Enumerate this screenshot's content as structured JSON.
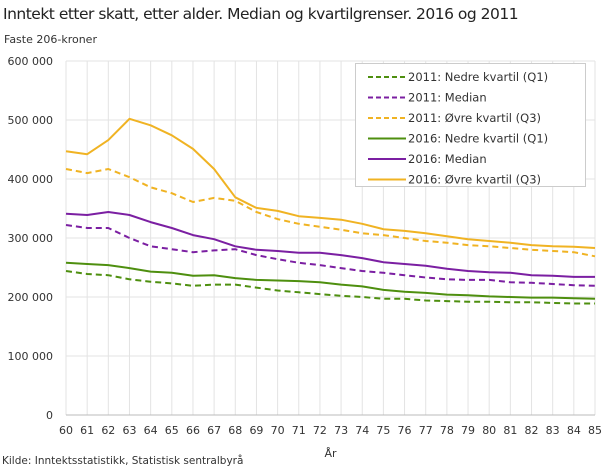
{
  "title": "Inntekt etter skatt, etter alder. Median og kvartilgrenser. 2016 og 2011",
  "source": "Kilde: Inntektsstatistikk, Statistisk sentralbyrå",
  "chart_data": {
    "type": "line",
    "title": "Inntekt etter skatt, etter alder. Median og kvartilgrenser. 2016 og 2011",
    "ylabel": "Faste 206-kroner",
    "xlabel": "År",
    "ylim": [
      0,
      600000
    ],
    "yticks": [
      0,
      100000,
      200000,
      300000,
      400000,
      500000,
      600000
    ],
    "ytick_labels": [
      "0",
      "100 000",
      "200 000",
      "300 000",
      "400 000",
      "500 000",
      "600 000"
    ],
    "grid": true,
    "legend_position": "top-right",
    "x": [
      60,
      61,
      62,
      63,
      64,
      65,
      66,
      67,
      68,
      69,
      70,
      71,
      72,
      73,
      74,
      75,
      76,
      77,
      78,
      79,
      80,
      81,
      82,
      83,
      84,
      85
    ],
    "series": [
      {
        "name": "2011: Nedre kvartil (Q1)",
        "color": "#4e8f0f",
        "dashed": true,
        "values": [
          244000,
          239000,
          237000,
          230000,
          226000,
          223000,
          219000,
          221000,
          221000,
          216000,
          211000,
          208000,
          205000,
          202000,
          200000,
          197000,
          197000,
          194000,
          193000,
          192000,
          192000,
          191000,
          191000,
          190000,
          189000,
          189000
        ]
      },
      {
        "name": "2011: Median",
        "color": "#7b1fa2",
        "dashed": true,
        "values": [
          322000,
          317000,
          317000,
          300000,
          286000,
          281000,
          276000,
          279000,
          281000,
          271000,
          264000,
          258000,
          254000,
          249000,
          244000,
          241000,
          237000,
          233000,
          230000,
          229000,
          229000,
          225000,
          224000,
          222000,
          220000,
          219000
        ]
      },
      {
        "name": "2011: Øvre kvartil (Q3)",
        "color": "#f0b323",
        "dashed": true,
        "values": [
          417000,
          410000,
          417000,
          403000,
          386000,
          376000,
          361000,
          368000,
          363000,
          344000,
          332000,
          324000,
          319000,
          314000,
          308000,
          305000,
          300000,
          295000,
          292000,
          288000,
          286000,
          283000,
          280000,
          278000,
          276000,
          269000
        ]
      },
      {
        "name": "2016: Nedre kvartil (Q1)",
        "color": "#4e8f0f",
        "dashed": false,
        "values": [
          258000,
          256000,
          254000,
          249000,
          243000,
          241000,
          236000,
          237000,
          232000,
          229000,
          228000,
          227000,
          225000,
          221000,
          218000,
          212000,
          209000,
          207000,
          204000,
          203000,
          201000,
          200000,
          199000,
          199000,
          198000,
          197000
        ]
      },
      {
        "name": "2016: Median",
        "color": "#7b1fa2",
        "dashed": false,
        "values": [
          341000,
          339000,
          344000,
          339000,
          327000,
          317000,
          305000,
          298000,
          286000,
          280000,
          278000,
          275000,
          275000,
          271000,
          266000,
          259000,
          256000,
          253000,
          248000,
          244000,
          242000,
          241000,
          237000,
          236000,
          234000,
          234000
        ]
      },
      {
        "name": "2016: Øvre kvartil (Q3)",
        "color": "#f0b323",
        "dashed": false,
        "values": [
          447000,
          442000,
          466000,
          502000,
          491000,
          474000,
          451000,
          417000,
          369000,
          351000,
          346000,
          337000,
          334000,
          331000,
          324000,
          315000,
          312000,
          308000,
          303000,
          298000,
          295000,
          292000,
          288000,
          286000,
          285000,
          283000
        ]
      }
    ]
  }
}
